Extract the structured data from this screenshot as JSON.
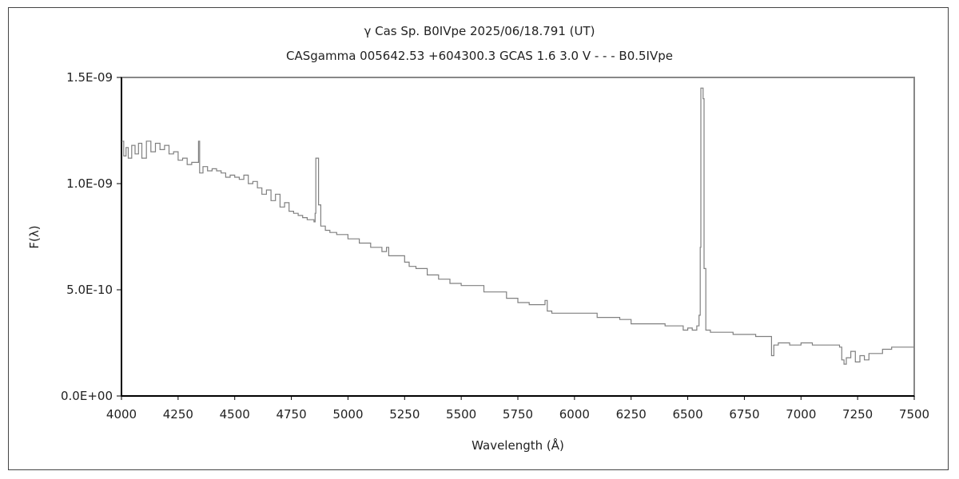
{
  "chart_data": {
    "type": "line",
    "title": "γ Cas    Sp. B0IVpe    2025/06/18.791 (UT)",
    "subtitle": "CASgamma 005642.53 +604300.3 GCAS 1.6 3.0 V - - - B0.5IVpe",
    "xlabel": "Wavelength (Å)",
    "ylabel": "F(λ)",
    "xlim": [
      4000,
      7500
    ],
    "ylim": [
      0,
      1.5e-09
    ],
    "xticks": [
      "4000",
      "4250",
      "4500",
      "4750",
      "5000",
      "5250",
      "5500",
      "5750",
      "6000",
      "6250",
      "6500",
      "6750",
      "7000",
      "7250",
      "7500"
    ],
    "yticks": [
      {
        "value": 0,
        "label": "0.0E+00"
      },
      {
        "value": 5e-10,
        "label": "5.0E-10"
      },
      {
        "value": 1e-09,
        "label": "1.0E-09"
      },
      {
        "value": 1.5e-09,
        "label": "1.5E-09"
      }
    ],
    "grid": false,
    "line_color": "#808080",
    "series": [
      {
        "name": "spectrum",
        "x": [
          4000,
          4010,
          4020,
          4030,
          4045,
          4060,
          4075,
          4090,
          4110,
          4130,
          4150,
          4170,
          4190,
          4210,
          4230,
          4250,
          4270,
          4290,
          4310,
          4330,
          4340,
          4345,
          4360,
          4380,
          4400,
          4420,
          4440,
          4460,
          4480,
          4500,
          4520,
          4540,
          4560,
          4580,
          4600,
          4620,
          4640,
          4660,
          4680,
          4700,
          4720,
          4740,
          4760,
          4780,
          4800,
          4820,
          4840,
          4850,
          4855,
          4858,
          4866,
          4870,
          4880,
          4900,
          4920,
          4950,
          5000,
          5050,
          5100,
          5150,
          5170,
          5180,
          5200,
          5250,
          5270,
          5300,
          5350,
          5400,
          5450,
          5500,
          5600,
          5700,
          5750,
          5800,
          5860,
          5870,
          5880,
          5900,
          5950,
          6000,
          6100,
          6200,
          6250,
          6300,
          6400,
          6450,
          6480,
          6500,
          6520,
          6540,
          6550,
          6555,
          6558,
          6568,
          6572,
          6580,
          6600,
          6700,
          6800,
          6860,
          6870,
          6880,
          6900,
          6950,
          7000,
          7050,
          7100,
          7150,
          7170,
          7180,
          7190,
          7200,
          7220,
          7240,
          7260,
          7280,
          7300,
          7330,
          7360,
          7400,
          7450,
          7500
        ],
        "y": [
          1.2e-09,
          1.13e-09,
          1.17e-09,
          1.12e-09,
          1.18e-09,
          1.14e-09,
          1.19e-09,
          1.12e-09,
          1.2e-09,
          1.15e-09,
          1.19e-09,
          1.16e-09,
          1.18e-09,
          1.14e-09,
          1.15e-09,
          1.11e-09,
          1.12e-09,
          1.09e-09,
          1.1e-09,
          1.1e-09,
          1.2e-09,
          1.05e-09,
          1.08e-09,
          1.06e-09,
          1.07e-09,
          1.06e-09,
          1.05e-09,
          1.03e-09,
          1.04e-09,
          1.03e-09,
          1.02e-09,
          1.04e-09,
          1e-09,
          1.01e-09,
          9.8e-10,
          9.5e-10,
          9.7e-10,
          9.2e-10,
          9.5e-10,
          8.9e-10,
          9.1e-10,
          8.7e-10,
          8.6e-10,
          8.5e-10,
          8.4e-10,
          8.3e-10,
          8.3e-10,
          8.2e-10,
          8.6e-10,
          1.12e-09,
          1.12e-09,
          9e-10,
          8e-10,
          7.8e-10,
          7.7e-10,
          7.6e-10,
          7.4e-10,
          7.2e-10,
          7e-10,
          6.8e-10,
          7e-10,
          6.6e-10,
          6.6e-10,
          6.3e-10,
          6.1e-10,
          6e-10,
          5.7e-10,
          5.5e-10,
          5.3e-10,
          5.2e-10,
          4.9e-10,
          4.6e-10,
          4.4e-10,
          4.3e-10,
          4.3e-10,
          4.5e-10,
          4e-10,
          3.9e-10,
          3.9e-10,
          3.9e-10,
          3.7e-10,
          3.6e-10,
          3.4e-10,
          3.4e-10,
          3.3e-10,
          3.3e-10,
          3.1e-10,
          3.2e-10,
          3.1e-10,
          3.3e-10,
          3.8e-10,
          7e-10,
          1.45e-09,
          1.4e-09,
          6e-10,
          3.1e-10,
          3e-10,
          2.9e-10,
          2.8e-10,
          2.8e-10,
          1.9e-10,
          2.4e-10,
          2.5e-10,
          2.4e-10,
          2.5e-10,
          2.4e-10,
          2.4e-10,
          2.4e-10,
          2.3e-10,
          1.7e-10,
          1.5e-10,
          1.8e-10,
          2.1e-10,
          1.6e-10,
          1.9e-10,
          1.7e-10,
          2e-10,
          2e-10,
          2.2e-10,
          2.3e-10,
          2.3e-10,
          2.3e-10
        ]
      }
    ]
  }
}
